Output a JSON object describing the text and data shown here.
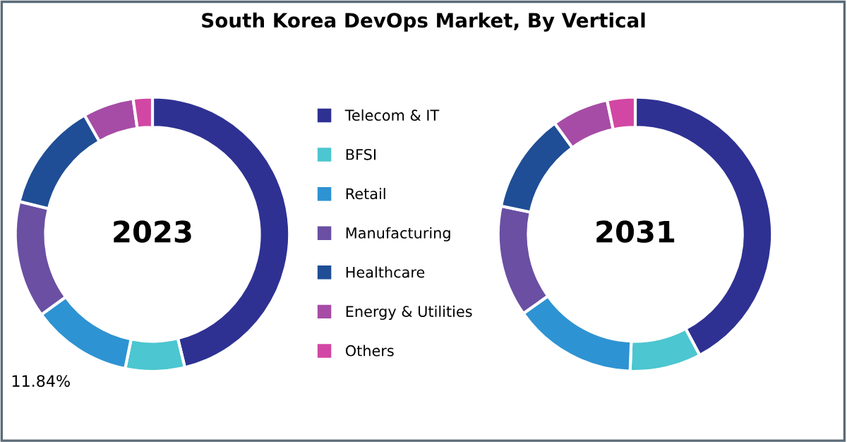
{
  "chart_data": [
    {
      "type": "donut",
      "title": "South Korea DevOps Market, By Vertical",
      "annotations": [
        "2023"
      ],
      "categories": [
        "Telecom & IT",
        "BFSI",
        "Retail",
        "Manufacturing",
        "Healthcare",
        "Energy & Utilities",
        "Others"
      ],
      "values": [
        46.2,
        7,
        11.84,
        13.8,
        12.9,
        6,
        2.26
      ],
      "value_labels": [
        null,
        null,
        "11.84%",
        null,
        null,
        null,
        null
      ],
      "colors": [
        "#2e3192",
        "#4cc6d0",
        "#2e93d2",
        "#6a4fa3",
        "#1f4e96",
        "#a64ca6",
        "#d247a3"
      ],
      "legend": "right"
    },
    {
      "type": "donut",
      "annotations": [
        "2031"
      ],
      "categories": [
        null,
        null,
        null,
        null,
        null,
        null,
        null
      ],
      "values": [
        42.2,
        8.4,
        14.6,
        13.1,
        11.7,
        6.7,
        3.3
      ],
      "colors": [
        "#2e3192",
        "#4cc6d0",
        "#2e93d2",
        "#6a4fa3",
        "#1f4e96",
        "#a64ca6",
        "#d247a3"
      ]
    }
  ]
}
